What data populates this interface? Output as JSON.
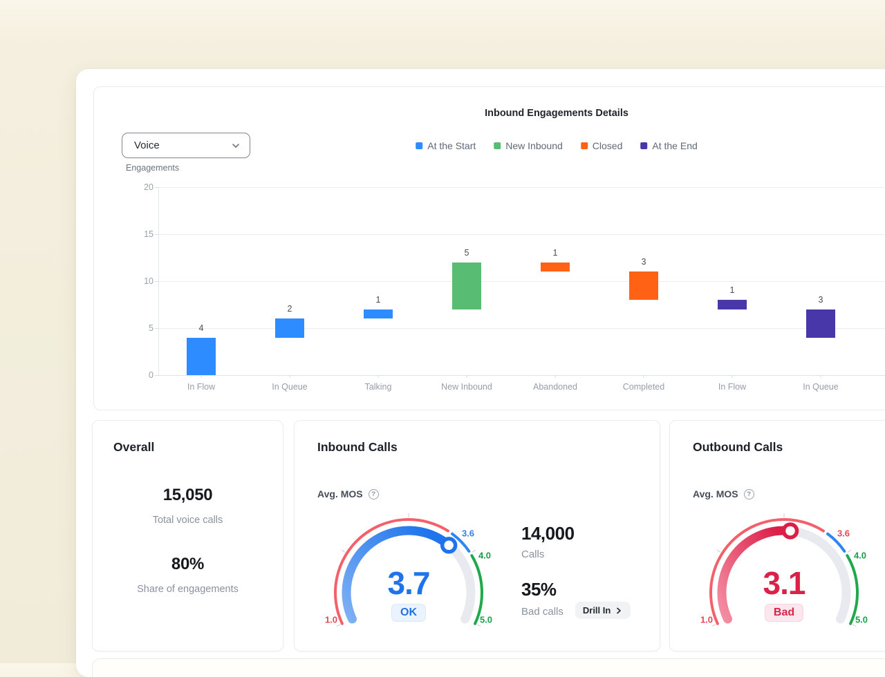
{
  "ui": {
    "info_glyph": "?"
  },
  "chart_card": {
    "title": "Inbound Engagements Details",
    "filter": {
      "value": "Voice"
    },
    "axis_label": "Engagements",
    "legend": [
      {
        "label": "At the Start",
        "color": "#2D8CFF"
      },
      {
        "label": "New Inbound",
        "color": "#58BC73"
      },
      {
        "label": "Closed",
        "color": "#FF6214"
      },
      {
        "label": "At the End",
        "color": "#4737A8"
      }
    ]
  },
  "chart_data": [
    {
      "type": "bar",
      "subtype": "floating-waterfall",
      "title": "Inbound Engagements Details",
      "xlabel": "",
      "ylabel": "Engagements",
      "ylim": [
        0,
        20
      ],
      "yticks": [
        0,
        5,
        10,
        15,
        20
      ],
      "grid": true,
      "legend_position": "top",
      "categories": [
        "In Flow",
        "In Queue",
        "Talking",
        "New Inbound",
        "Abandoned",
        "Completed",
        "In Flow",
        "In Queue"
      ],
      "bars": [
        {
          "category": "In Flow",
          "series": "At the Start",
          "low": 0,
          "high": 4,
          "label": "4",
          "color": "#2D8CFF"
        },
        {
          "category": "In Queue",
          "series": "At the Start",
          "low": 4,
          "high": 6,
          "label": "2",
          "color": "#2D8CFF"
        },
        {
          "category": "Talking",
          "series": "At the Start",
          "low": 6,
          "high": 7,
          "label": "1",
          "color": "#2D8CFF"
        },
        {
          "category": "New Inbound",
          "series": "New Inbound",
          "low": 7,
          "high": 12,
          "label": "5",
          "color": "#58BC73"
        },
        {
          "category": "Abandoned",
          "series": "Closed",
          "low": 11,
          "high": 12,
          "label": "1",
          "color": "#FF6214"
        },
        {
          "category": "Completed",
          "series": "Closed",
          "low": 8,
          "high": 11,
          "label": "3",
          "color": "#FF6214"
        },
        {
          "category": "In Flow",
          "series": "At the End",
          "low": 7,
          "high": 8,
          "label": "1",
          "color": "#4737A8"
        },
        {
          "category": "In Queue",
          "series": "At the End",
          "low": 4,
          "high": 7,
          "label": "3",
          "color": "#4737A8"
        }
      ]
    },
    {
      "type": "gauge",
      "card": "Inbound Calls",
      "metric": "Avg. MOS",
      "value": 3.7,
      "value_label": "3.7",
      "status": "OK",
      "min": 1,
      "max": 5,
      "bands": [
        {
          "from": 1,
          "to": 3.6,
          "color": "#F4606A"
        },
        {
          "from": 3.6,
          "to": 4,
          "color": "#2E86F2"
        },
        {
          "from": 4,
          "to": 5,
          "color": "#21A84D"
        }
      ],
      "tick_labels": [
        {
          "text": "1.0",
          "color": "#E84653"
        },
        {
          "text": "3.6",
          "color": "#2E7FF2"
        },
        {
          "text": "4.0",
          "color": "#18A04B"
        },
        {
          "text": "5.0",
          "color": "#18A04B"
        }
      ],
      "progress_gradient": [
        "#7FB0F4",
        "#1D74EC"
      ],
      "value_color": "#2173EB",
      "badge_bg": "#EBF3FE",
      "badge_border": "#D8E8FD",
      "badge_text": "#2171E8"
    },
    {
      "type": "gauge",
      "card": "Outbound Calls",
      "metric": "Avg. MOS",
      "value": 3.1,
      "value_label": "3.1",
      "status": "Bad",
      "min": 1,
      "max": 5,
      "bands": [
        {
          "from": 1,
          "to": 3.6,
          "color": "#F4606A"
        },
        {
          "from": 3.6,
          "to": 4,
          "color": "#2E86F2"
        },
        {
          "from": 4,
          "to": 5,
          "color": "#21A84D"
        }
      ],
      "tick_labels": [
        {
          "text": "1.0",
          "color": "#E84653"
        },
        {
          "text": "3.6",
          "color": "#E84653"
        },
        {
          "text": "4.0",
          "color": "#18A04B"
        },
        {
          "text": "5.0",
          "color": "#18A04B"
        }
      ],
      "progress_gradient": [
        "#F490A4",
        "#DB1F47"
      ],
      "value_color": "#DB2148",
      "badge_bg": "#FBE7ED",
      "badge_border": "#F6D3DE",
      "badge_text": "#D9244A"
    }
  ],
  "cards": {
    "overall": {
      "title": "Overall",
      "stats": [
        {
          "value": "15,050",
          "label": "Total voice calls"
        },
        {
          "value": "80%",
          "label": "Share of engagements"
        }
      ]
    },
    "inbound": {
      "title": "Inbound Calls",
      "metric_label": "Avg. MOS",
      "stats": [
        {
          "value": "14,000",
          "label": "Calls"
        },
        {
          "value": "35%",
          "label": "Bad calls"
        }
      ],
      "drill_label": "Drill In"
    },
    "outbound": {
      "title": "Outbound Calls",
      "metric_label": "Avg. MOS"
    }
  }
}
